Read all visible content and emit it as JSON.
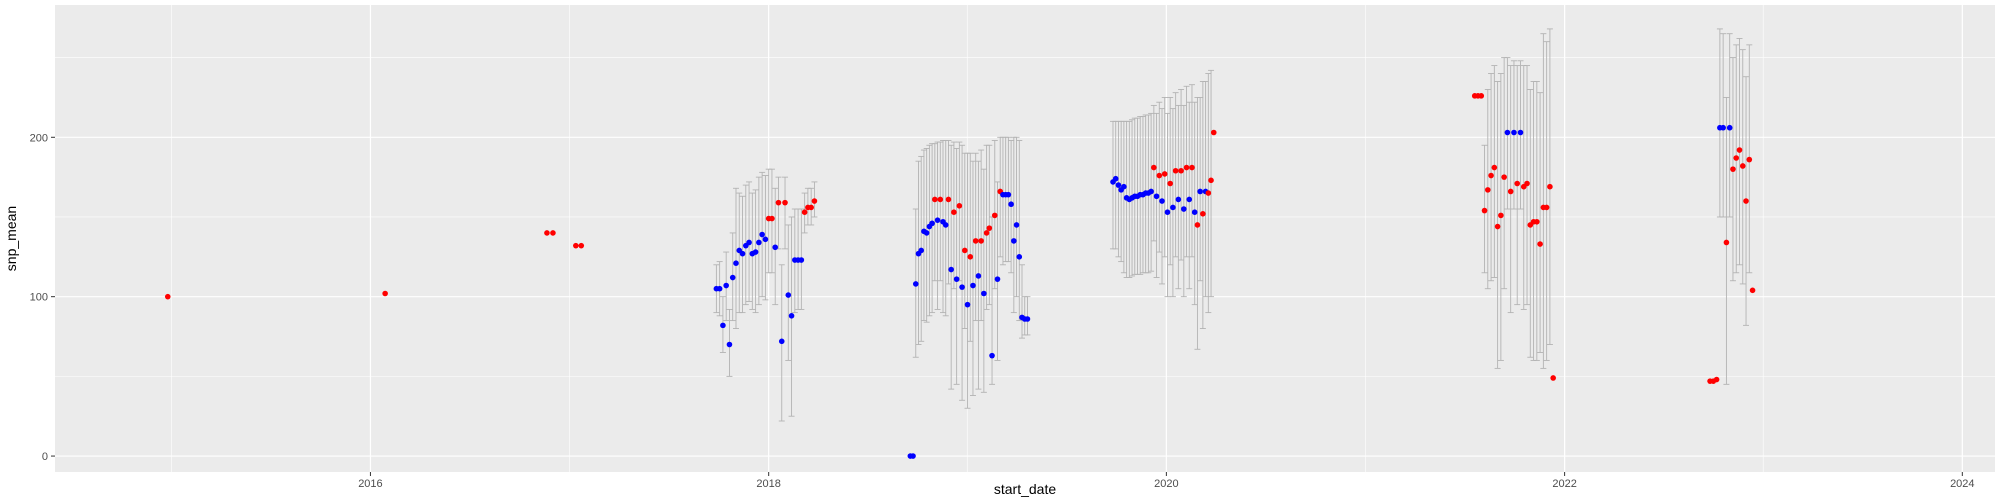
{
  "chart_data": {
    "type": "scatter",
    "xlabel": "start_date",
    "ylabel": "snp_mean",
    "xlim": [
      "2014-06-01",
      "2024-03-01"
    ],
    "ylim": [
      -10,
      283
    ],
    "x_ticks": [
      {
        "value": "2016-01-01",
        "label": "2016"
      },
      {
        "value": "2018-01-01",
        "label": "2018"
      },
      {
        "value": "2020-01-01",
        "label": "2020"
      },
      {
        "value": "2022-01-01",
        "label": "2022"
      },
      {
        "value": "2024-01-01",
        "label": "2024"
      }
    ],
    "y_ticks": [
      0,
      100,
      200
    ],
    "grid": true,
    "colors": {
      "panel": "#ebebeb",
      "grid": "#ffffff",
      "errorbar": "#b3b3b3",
      "red": "#ff0000",
      "blue": "#0000ff"
    },
    "points": [
      {
        "x": "2014-12-25",
        "y": 100,
        "color": "red"
      },
      {
        "x": "2016-01-28",
        "y": 102,
        "color": "red"
      },
      {
        "x": "2016-11-20",
        "y": 140,
        "color": "red"
      },
      {
        "x": "2016-12-01",
        "y": 140,
        "color": "red"
      },
      {
        "x": "2017-01-12",
        "y": 132,
        "color": "red"
      },
      {
        "x": "2017-01-22",
        "y": 132,
        "color": "red"
      },
      {
        "x": "2017-09-27",
        "y": 105,
        "color": "blue",
        "lo": 90,
        "hi": 120
      },
      {
        "x": "2017-10-03",
        "y": 105,
        "color": "blue",
        "lo": 88,
        "hi": 122
      },
      {
        "x": "2017-10-09",
        "y": 82,
        "color": "blue",
        "lo": 65,
        "hi": 100
      },
      {
        "x": "2017-10-15",
        "y": 107,
        "color": "blue",
        "lo": 85,
        "hi": 128
      },
      {
        "x": "2017-10-21",
        "y": 70,
        "color": "blue",
        "lo": 50,
        "hi": 92
      },
      {
        "x": "2017-10-27",
        "y": 112,
        "color": "blue",
        "lo": 85,
        "hi": 140
      },
      {
        "x": "2017-11-02",
        "y": 121,
        "color": "blue",
        "lo": 80,
        "hi": 168
      },
      {
        "x": "2017-11-08",
        "y": 129,
        "color": "blue",
        "lo": 90,
        "hi": 165
      },
      {
        "x": "2017-11-14",
        "y": 127,
        "color": "blue",
        "lo": 90,
        "hi": 163
      },
      {
        "x": "2017-11-20",
        "y": 132,
        "color": "blue",
        "lo": 95,
        "hi": 170
      },
      {
        "x": "2017-11-26",
        "y": 134,
        "color": "blue",
        "lo": 97,
        "hi": 172
      },
      {
        "x": "2017-12-02",
        "y": 127,
        "color": "blue",
        "lo": 92,
        "hi": 165
      },
      {
        "x": "2017-12-08",
        "y": 128,
        "color": "blue",
        "lo": 90,
        "hi": 167
      },
      {
        "x": "2017-12-14",
        "y": 134,
        "color": "blue",
        "lo": 95,
        "hi": 175
      },
      {
        "x": "2017-12-20",
        "y": 139,
        "color": "blue",
        "lo": 100,
        "hi": 178
      },
      {
        "x": "2017-12-26",
        "y": 136,
        "color": "blue",
        "lo": 98,
        "hi": 176
      },
      {
        "x": "2018-01-01",
        "y": 149,
        "color": "red",
        "lo": 115,
        "hi": 180
      },
      {
        "x": "2018-01-07",
        "y": 149,
        "color": "red",
        "lo": 115,
        "hi": 180
      },
      {
        "x": "2018-01-13",
        "y": 131,
        "color": "blue",
        "lo": 95,
        "hi": 168
      },
      {
        "x": "2018-01-19",
        "y": 159,
        "color": "red",
        "lo": 130,
        "hi": 175
      },
      {
        "x": "2018-01-25",
        "y": 72,
        "color": "blue",
        "lo": 22,
        "hi": 120
      },
      {
        "x": "2018-01-31",
        "y": 159,
        "color": "red",
        "lo": 130,
        "hi": 175
      },
      {
        "x": "2018-02-06",
        "y": 101,
        "color": "blue",
        "lo": 60,
        "hi": 145
      },
      {
        "x": "2018-02-12",
        "y": 88,
        "color": "blue",
        "lo": 25,
        "hi": 150
      },
      {
        "x": "2018-02-18",
        "y": 123,
        "color": "blue",
        "lo": 90,
        "hi": 155
      },
      {
        "x": "2018-02-24",
        "y": 123,
        "color": "blue",
        "lo": 92,
        "hi": 155
      },
      {
        "x": "2018-03-02",
        "y": 123,
        "color": "blue",
        "lo": 92,
        "hi": 155
      },
      {
        "x": "2018-03-08",
        "y": 153,
        "color": "red",
        "lo": 140,
        "hi": 165
      },
      {
        "x": "2018-03-14",
        "y": 156,
        "color": "red",
        "lo": 145,
        "hi": 168
      },
      {
        "x": "2018-03-20",
        "y": 156,
        "color": "red",
        "lo": 145,
        "hi": 168
      },
      {
        "x": "2018-03-26",
        "y": 160,
        "color": "red",
        "lo": 150,
        "hi": 172
      },
      {
        "x": "2018-09-18",
        "y": 0,
        "color": "blue"
      },
      {
        "x": "2018-09-23",
        "y": 0,
        "color": "blue"
      },
      {
        "x": "2018-09-28",
        "y": 108,
        "color": "blue",
        "lo": 62,
        "hi": 155
      },
      {
        "x": "2018-10-03",
        "y": 127,
        "color": "blue",
        "lo": 70,
        "hi": 185
      },
      {
        "x": "2018-10-08",
        "y": 129,
        "color": "blue",
        "lo": 72,
        "hi": 188
      },
      {
        "x": "2018-10-13",
        "y": 141,
        "color": "blue",
        "lo": 85,
        "hi": 192
      },
      {
        "x": "2018-10-18",
        "y": 140,
        "color": "blue",
        "lo": 84,
        "hi": 193
      },
      {
        "x": "2018-10-23",
        "y": 144,
        "color": "blue",
        "lo": 88,
        "hi": 195
      },
      {
        "x": "2018-10-28",
        "y": 146,
        "color": "blue",
        "lo": 90,
        "hi": 196
      },
      {
        "x": "2018-11-02",
        "y": 161,
        "color": "red",
        "lo": 110,
        "hi": 196
      },
      {
        "x": "2018-11-07",
        "y": 148,
        "color": "blue",
        "lo": 92,
        "hi": 197
      },
      {
        "x": "2018-11-12",
        "y": 161,
        "color": "red",
        "lo": 110,
        "hi": 197
      },
      {
        "x": "2018-11-17",
        "y": 147,
        "color": "blue",
        "lo": 90,
        "hi": 198
      },
      {
        "x": "2018-11-22",
        "y": 145,
        "color": "blue",
        "lo": 88,
        "hi": 198
      },
      {
        "x": "2018-11-27",
        "y": 161,
        "color": "red",
        "lo": 108,
        "hi": 198
      },
      {
        "x": "2018-12-02",
        "y": 117,
        "color": "blue",
        "lo": 42,
        "hi": 195
      },
      {
        "x": "2018-12-07",
        "y": 153,
        "color": "red",
        "lo": 105,
        "hi": 197
      },
      {
        "x": "2018-12-12",
        "y": 111,
        "color": "blue",
        "lo": 45,
        "hi": 193
      },
      {
        "x": "2018-12-17",
        "y": 157,
        "color": "red",
        "lo": 110,
        "hi": 197
      },
      {
        "x": "2018-12-22",
        "y": 106,
        "color": "blue",
        "lo": 35,
        "hi": 195
      },
      {
        "x": "2018-12-27",
        "y": 129,
        "color": "red",
        "lo": 80,
        "hi": 190
      },
      {
        "x": "2019-01-01",
        "y": 95,
        "color": "blue",
        "lo": 30,
        "hi": 190
      },
      {
        "x": "2019-01-06",
        "y": 125,
        "color": "red",
        "lo": 72,
        "hi": 190
      },
      {
        "x": "2019-01-11",
        "y": 107,
        "color": "blue",
        "lo": 38,
        "hi": 185
      },
      {
        "x": "2019-01-16",
        "y": 135,
        "color": "red",
        "lo": 85,
        "hi": 190
      },
      {
        "x": "2019-01-21",
        "y": 113,
        "color": "blue",
        "lo": 42,
        "hi": 185
      },
      {
        "x": "2019-01-26",
        "y": 135,
        "color": "red",
        "lo": 85,
        "hi": 192
      },
      {
        "x": "2019-01-31",
        "y": 102,
        "color": "blue",
        "lo": 40,
        "hi": 180
      },
      {
        "x": "2019-02-05",
        "y": 140,
        "color": "red",
        "lo": 92,
        "hi": 195
      },
      {
        "x": "2019-02-10",
        "y": 143,
        "color": "red",
        "lo": 95,
        "hi": 195
      },
      {
        "x": "2019-02-15",
        "y": 63,
        "color": "blue",
        "lo": 45,
        "hi": 150
      },
      {
        "x": "2019-02-20",
        "y": 151,
        "color": "red",
        "lo": 105,
        "hi": 198
      },
      {
        "x": "2019-02-25",
        "y": 111,
        "color": "blue",
        "lo": 60,
        "hi": 172
      },
      {
        "x": "2019-03-02",
        "y": 166,
        "color": "red",
        "lo": 125,
        "hi": 200
      },
      {
        "x": "2019-03-07",
        "y": 164,
        "color": "blue",
        "lo": 120,
        "hi": 200
      },
      {
        "x": "2019-03-12",
        "y": 164,
        "color": "blue",
        "lo": 122,
        "hi": 200
      },
      {
        "x": "2019-03-17",
        "y": 164,
        "color": "blue",
        "lo": 122,
        "hi": 200
      },
      {
        "x": "2019-03-22",
        "y": 158,
        "color": "blue",
        "lo": 115,
        "hi": 198
      },
      {
        "x": "2019-03-27",
        "y": 135,
        "color": "blue",
        "lo": 90,
        "hi": 200
      },
      {
        "x": "2019-04-01",
        "y": 145,
        "color": "blue",
        "lo": 100,
        "hi": 200
      },
      {
        "x": "2019-04-06",
        "y": 125,
        "color": "blue",
        "lo": 85,
        "hi": 198
      },
      {
        "x": "2019-04-11",
        "y": 87,
        "color": "blue",
        "lo": 74,
        "hi": 120
      },
      {
        "x": "2019-04-16",
        "y": 86,
        "color": "blue",
        "lo": 76,
        "hi": 100
      },
      {
        "x": "2019-04-21",
        "y": 86,
        "color": "blue",
        "lo": 76,
        "hi": 100
      },
      {
        "x": "2019-09-25",
        "y": 172,
        "color": "blue",
        "lo": 130,
        "hi": 210
      },
      {
        "x": "2019-09-30",
        "y": 174,
        "color": "blue",
        "lo": 130,
        "hi": 210
      },
      {
        "x": "2019-10-05",
        "y": 170,
        "color": "blue",
        "lo": 125,
        "hi": 210
      },
      {
        "x": "2019-10-10",
        "y": 167,
        "color": "blue",
        "lo": 122,
        "hi": 210
      },
      {
        "x": "2019-10-15",
        "y": 169,
        "color": "blue",
        "lo": 115,
        "hi": 210
      },
      {
        "x": "2019-10-20",
        "y": 162,
        "color": "blue",
        "lo": 112,
        "hi": 210
      },
      {
        "x": "2019-10-25",
        "y": 161,
        "color": "blue",
        "lo": 112,
        "hi": 210
      },
      {
        "x": "2019-10-30",
        "y": 162,
        "color": "blue",
        "lo": 113,
        "hi": 211
      },
      {
        "x": "2019-11-04",
        "y": 163,
        "color": "blue",
        "lo": 114,
        "hi": 212
      },
      {
        "x": "2019-11-09",
        "y": 163,
        "color": "blue",
        "lo": 114,
        "hi": 212
      },
      {
        "x": "2019-11-14",
        "y": 164,
        "color": "blue",
        "lo": 114,
        "hi": 213
      },
      {
        "x": "2019-11-19",
        "y": 164,
        "color": "blue",
        "lo": 115,
        "hi": 213
      },
      {
        "x": "2019-11-24",
        "y": 165,
        "color": "blue",
        "lo": 115,
        "hi": 214
      },
      {
        "x": "2019-11-29",
        "y": 165,
        "color": "blue",
        "lo": 115,
        "hi": 214
      },
      {
        "x": "2019-12-04",
        "y": 166,
        "color": "blue",
        "lo": 116,
        "hi": 215
      },
      {
        "x": "2019-12-09",
        "y": 181,
        "color": "red",
        "lo": 135,
        "hi": 220
      },
      {
        "x": "2019-12-14",
        "y": 163,
        "color": "blue",
        "lo": 112,
        "hi": 215
      },
      {
        "x": "2019-12-19",
        "y": 176,
        "color": "red",
        "lo": 128,
        "hi": 222
      },
      {
        "x": "2019-12-24",
        "y": 160,
        "color": "blue",
        "lo": 108,
        "hi": 218
      },
      {
        "x": "2019-12-29",
        "y": 177,
        "color": "red",
        "lo": 125,
        "hi": 225
      },
      {
        "x": "2020-01-03",
        "y": 153,
        "color": "blue",
        "lo": 100,
        "hi": 215
      },
      {
        "x": "2020-01-08",
        "y": 171,
        "color": "red",
        "lo": 120,
        "hi": 225
      },
      {
        "x": "2020-01-13",
        "y": 156,
        "color": "blue",
        "lo": 100,
        "hi": 218
      },
      {
        "x": "2020-01-18",
        "y": 179,
        "color": "red",
        "lo": 125,
        "hi": 228
      },
      {
        "x": "2020-01-23",
        "y": 161,
        "color": "blue",
        "lo": 105,
        "hi": 220
      },
      {
        "x": "2020-01-28",
        "y": 179,
        "color": "red",
        "lo": 123,
        "hi": 230
      },
      {
        "x": "2020-02-02",
        "y": 155,
        "color": "blue",
        "lo": 100,
        "hi": 220
      },
      {
        "x": "2020-02-07",
        "y": 181,
        "color": "red",
        "lo": 125,
        "hi": 232
      },
      {
        "x": "2020-02-12",
        "y": 161,
        "color": "blue",
        "lo": 105,
        "hi": 222
      },
      {
        "x": "2020-02-17",
        "y": 181,
        "color": "red",
        "lo": 125,
        "hi": 233
      },
      {
        "x": "2020-02-22",
        "y": 153,
        "color": "blue",
        "lo": 95,
        "hi": 222
      },
      {
        "x": "2020-02-27",
        "y": 145,
        "color": "red",
        "lo": 67,
        "hi": 225
      },
      {
        "x": "2020-03-03",
        "y": 166,
        "color": "blue",
        "lo": 110,
        "hi": 225
      },
      {
        "x": "2020-03-08",
        "y": 152,
        "color": "red",
        "lo": 80,
        "hi": 235
      },
      {
        "x": "2020-03-13",
        "y": 166,
        "color": "blue",
        "lo": 100,
        "hi": 235
      },
      {
        "x": "2020-03-18",
        "y": 165,
        "color": "red",
        "lo": 90,
        "hi": 240
      },
      {
        "x": "2020-03-23",
        "y": 173,
        "color": "red",
        "lo": 100,
        "hi": 242
      },
      {
        "x": "2020-03-28",
        "y": 203,
        "color": "red"
      },
      {
        "x": "2021-07-20",
        "y": 226,
        "color": "red"
      },
      {
        "x": "2021-07-26",
        "y": 226,
        "color": "red"
      },
      {
        "x": "2021-08-01",
        "y": 226,
        "color": "red"
      },
      {
        "x": "2021-08-07",
        "y": 154,
        "color": "red",
        "lo": 115,
        "hi": 195
      },
      {
        "x": "2021-08-13",
        "y": 167,
        "color": "red",
        "lo": 105,
        "hi": 230
      },
      {
        "x": "2021-08-19",
        "y": 176,
        "color": "red",
        "lo": 110,
        "hi": 240
      },
      {
        "x": "2021-08-25",
        "y": 181,
        "color": "red",
        "lo": 112,
        "hi": 245
      },
      {
        "x": "2021-08-31",
        "y": 144,
        "color": "red",
        "lo": 55,
        "hi": 235
      },
      {
        "x": "2021-09-06",
        "y": 151,
        "color": "red",
        "lo": 60,
        "hi": 240
      },
      {
        "x": "2021-09-12",
        "y": 175,
        "color": "red",
        "lo": 105,
        "hi": 250
      },
      {
        "x": "2021-09-18",
        "y": 203,
        "color": "blue",
        "lo": 155,
        "hi": 250
      },
      {
        "x": "2021-09-24",
        "y": 166,
        "color": "red",
        "lo": 90,
        "hi": 245
      },
      {
        "x": "2021-09-30",
        "y": 203,
        "color": "blue",
        "lo": 155,
        "hi": 248
      },
      {
        "x": "2021-10-06",
        "y": 171,
        "color": "red",
        "lo": 95,
        "hi": 245
      },
      {
        "x": "2021-10-12",
        "y": 203,
        "color": "blue",
        "lo": 155,
        "hi": 248
      },
      {
        "x": "2021-10-18",
        "y": 169,
        "color": "red",
        "lo": 92,
        "hi": 245
      },
      {
        "x": "2021-10-24",
        "y": 171,
        "color": "red",
        "lo": 95,
        "hi": 245
      },
      {
        "x": "2021-10-30",
        "y": 145,
        "color": "red",
        "lo": 62,
        "hi": 230
      },
      {
        "x": "2021-11-05",
        "y": 147,
        "color": "red",
        "lo": 60,
        "hi": 235
      },
      {
        "x": "2021-11-11",
        "y": 147,
        "color": "red",
        "lo": 60,
        "hi": 235
      },
      {
        "x": "2021-11-17",
        "y": 133,
        "color": "red",
        "lo": 65,
        "hi": 228
      },
      {
        "x": "2021-11-23",
        "y": 156,
        "color": "red",
        "lo": 55,
        "hi": 265
      },
      {
        "x": "2021-11-29",
        "y": 156,
        "color": "red",
        "lo": 60,
        "hi": 260
      },
      {
        "x": "2021-12-05",
        "y": 169,
        "color": "red",
        "lo": 70,
        "hi": 268
      },
      {
        "x": "2021-12-11",
        "y": 49,
        "color": "red"
      },
      {
        "x": "2022-09-25",
        "y": 47,
        "color": "red"
      },
      {
        "x": "2022-10-01",
        "y": 47,
        "color": "red"
      },
      {
        "x": "2022-10-07",
        "y": 48,
        "color": "red"
      },
      {
        "x": "2022-10-13",
        "y": 206,
        "color": "blue",
        "lo": 150,
        "hi": 268
      },
      {
        "x": "2022-10-19",
        "y": 206,
        "color": "blue",
        "lo": 150,
        "hi": 265
      },
      {
        "x": "2022-10-25",
        "y": 134,
        "color": "red",
        "lo": 45,
        "hi": 225
      },
      {
        "x": "2022-10-31",
        "y": 206,
        "color": "blue",
        "lo": 150,
        "hi": 265
      },
      {
        "x": "2022-11-06",
        "y": 180,
        "color": "red",
        "lo": 110,
        "hi": 250
      },
      {
        "x": "2022-11-12",
        "y": 187,
        "color": "red",
        "lo": 115,
        "hi": 258
      },
      {
        "x": "2022-11-18",
        "y": 192,
        "color": "red",
        "lo": 120,
        "hi": 262
      },
      {
        "x": "2022-11-24",
        "y": 182,
        "color": "red",
        "lo": 108,
        "hi": 255
      },
      {
        "x": "2022-11-30",
        "y": 160,
        "color": "red",
        "lo": 82,
        "hi": 238
      },
      {
        "x": "2022-12-06",
        "y": 186,
        "color": "red",
        "lo": 115,
        "hi": 258
      },
      {
        "x": "2022-12-12",
        "y": 104,
        "color": "red"
      }
    ]
  }
}
